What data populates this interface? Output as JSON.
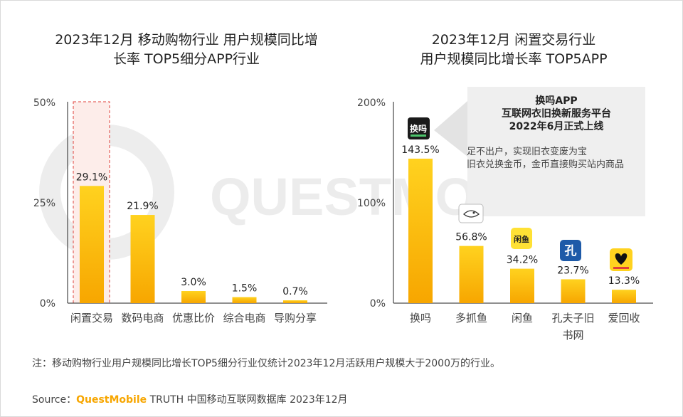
{
  "charts": {
    "left": {
      "title_line1": "2023年12月 移动购物行业 用户规模同比增",
      "title_line2": "长率 TOP5细分APP行业",
      "ticks": [
        "50%",
        "25%",
        "0%"
      ]
    },
    "right": {
      "title_line1": "2023年12月 闲置交易行业",
      "title_line2": "用户规模同比增长率 TOP5APP",
      "ticks": [
        "200%",
        "100%",
        "0%"
      ]
    }
  },
  "chart_data": [
    {
      "type": "bar",
      "title": "2023年12月 移动购物行业 用户规模同比增长率 TOP5细分APP行业",
      "categories": [
        "闲置交易",
        "数码电商",
        "优惠比价",
        "综合电商",
        "导购分享"
      ],
      "values": [
        29.1,
        21.9,
        3.0,
        1.5,
        0.7
      ],
      "value_labels": [
        "29.1%",
        "21.9%",
        "3.0%",
        "1.5%",
        "0.7%"
      ],
      "ylim": [
        0,
        50
      ],
      "yticks": [
        "0%",
        "25%",
        "50%"
      ],
      "highlight_category": "闲置交易"
    },
    {
      "type": "bar",
      "title": "2023年12月 闲置交易行业 用户规模同比增长率 TOP5APP",
      "categories": [
        "换吗",
        "多抓鱼",
        "闲鱼",
        "孔夫子旧书网",
        "爱回收"
      ],
      "category_lines": [
        [
          "换吗"
        ],
        [
          "多抓鱼"
        ],
        [
          "闲鱼"
        ],
        [
          "孔夫子旧",
          "书网"
        ],
        [
          "爱回收"
        ]
      ],
      "values": [
        143.5,
        56.8,
        34.2,
        23.7,
        13.3
      ],
      "value_labels": [
        "143.5%",
        "56.8%",
        "34.2%",
        "23.7%",
        "13.3%"
      ],
      "ylim": [
        0,
        200
      ],
      "yticks": [
        "0%",
        "100%",
        "200%"
      ],
      "app_icons": [
        "huanma-app-icon",
        "duozhuayu-app-icon",
        "xianyu-app-icon",
        "kongfuzi-app-icon",
        "aihuishou-app-icon"
      ]
    }
  ],
  "callout": {
    "title_lines": [
      "换吗APP",
      "互联网衣旧换新服务平台",
      "2022年6月正式上线"
    ],
    "body_lines": [
      "足不出户，实现旧衣变废为宝",
      "旧衣兑换金币，金币直接购买站内商品"
    ]
  },
  "icons": {
    "huanma_text": "换吗",
    "xianyu_text": "闲鱼",
    "kongfuzi_text": "孔"
  },
  "watermark": "QUESTMOBILE",
  "note": "注：移动购物行业用户规模同比增长TOP5细分行业仅统计2023年12月活跃用户规模大于2000万的行业。",
  "source": {
    "label": "Source：",
    "brand": "QuestMobile",
    "rest": " TRUTH 中国移动互联网数据库 2023年12月"
  },
  "colors": {
    "bar_top": "#FFD21F",
    "bar_bottom": "#F7A600",
    "highlight_border": "#E0403A",
    "highlight_fill": "#FDEDEA",
    "brand": "#F7A600",
    "callout_bg": "#EFEFEF"
  }
}
